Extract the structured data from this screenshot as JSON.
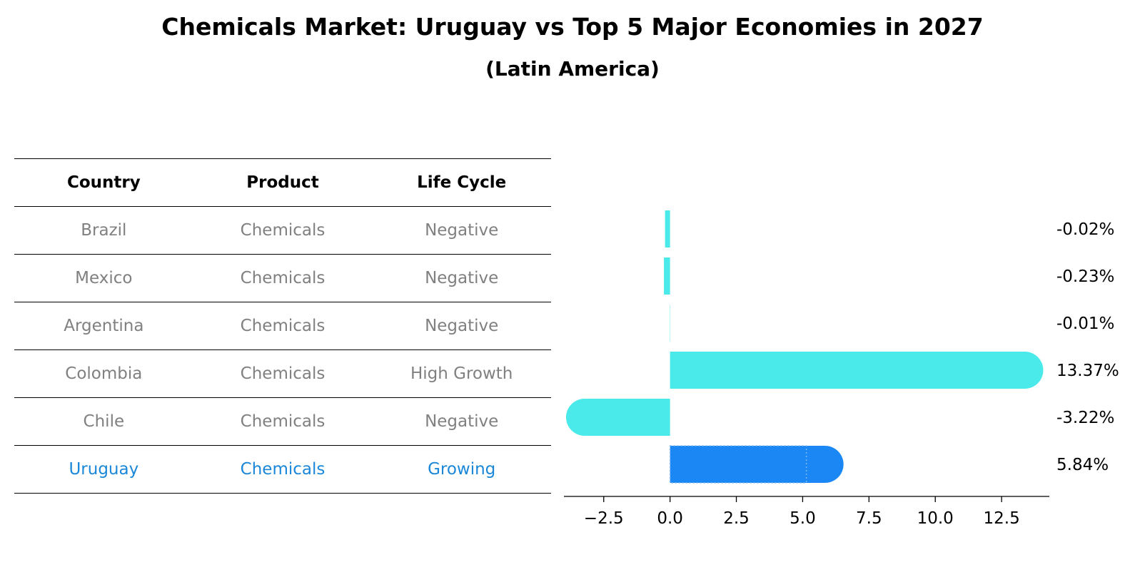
{
  "title": "Chemicals Market: Uruguay vs Top 5 Major Economies in 2027",
  "subtitle": "(Latin America)",
  "table": {
    "headers": [
      "Country",
      "Product",
      "Life Cycle"
    ],
    "rows": [
      {
        "country": "Brazil",
        "product": "Chemicals",
        "life_cycle": "Negative"
      },
      {
        "country": "Mexico",
        "product": "Chemicals",
        "life_cycle": "Negative"
      },
      {
        "country": "Argentina",
        "product": "Chemicals",
        "life_cycle": "Negative"
      },
      {
        "country": "Colombia",
        "product": "Chemicals",
        "life_cycle": "High Growth"
      },
      {
        "country": "Chile",
        "product": "Chemicals",
        "life_cycle": "Negative"
      },
      {
        "country": "Uruguay",
        "product": "Chemicals",
        "life_cycle": "Growing"
      }
    ]
  },
  "colors": {
    "bar": "#4aeaea",
    "highlight": "#1a87f5",
    "muted_text": "#808080",
    "highlight_text": "#1a87d9"
  },
  "chart_data": {
    "type": "bar",
    "orientation": "horizontal",
    "categories": [
      "Brazil",
      "Mexico",
      "Argentina",
      "Colombia",
      "Chile",
      "Uruguay"
    ],
    "values": [
      -0.02,
      -0.23,
      -0.01,
      13.37,
      -3.22,
      5.84
    ],
    "value_labels": [
      "-0.02%",
      "-0.23%",
      "-0.01%",
      "13.37%",
      "-3.22%",
      "5.84%"
    ],
    "highlight_category": "Uruguay",
    "xlim": [
      -4,
      14.3
    ],
    "xticks": [
      -2.5,
      0.0,
      2.5,
      5.0,
      7.5,
      10.0,
      12.5
    ],
    "xtick_labels": [
      "−2.5",
      "0.0",
      "2.5",
      "5.0",
      "7.5",
      "10.0",
      "12.5"
    ],
    "xlabel": "",
    "ylabel": "",
    "grid": false
  }
}
